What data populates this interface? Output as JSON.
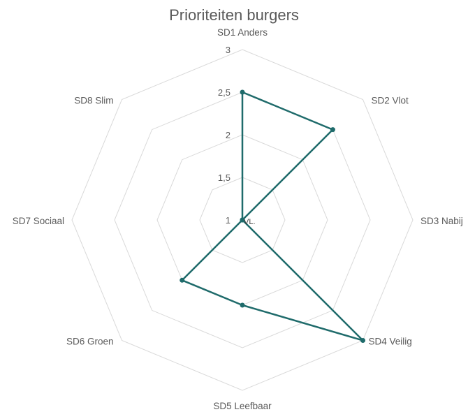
{
  "chart_data": {
    "type": "radar",
    "title": "Prioriteiten burgers",
    "categories": [
      "SD1 Anders",
      "SD2 Vlot",
      "SD3 Nabij",
      "SD4 Veilig",
      "SD5 Leefbaar",
      "SD6 Groen",
      "SD7 Sociaal",
      "SD8 Slim"
    ],
    "r_ticks": [
      "1",
      "1,5",
      "2",
      "2,5",
      "3"
    ],
    "r_tick_values": [
      1,
      1.5,
      2,
      2.5,
      3
    ],
    "rlim": [
      1,
      3
    ],
    "center_label": "VL.",
    "grid": true,
    "legend": "none",
    "series": [
      {
        "values": [
          2.5,
          2.5,
          1,
          3,
          2,
          2,
          1,
          1
        ],
        "color": "#1f6b6b"
      }
    ]
  }
}
